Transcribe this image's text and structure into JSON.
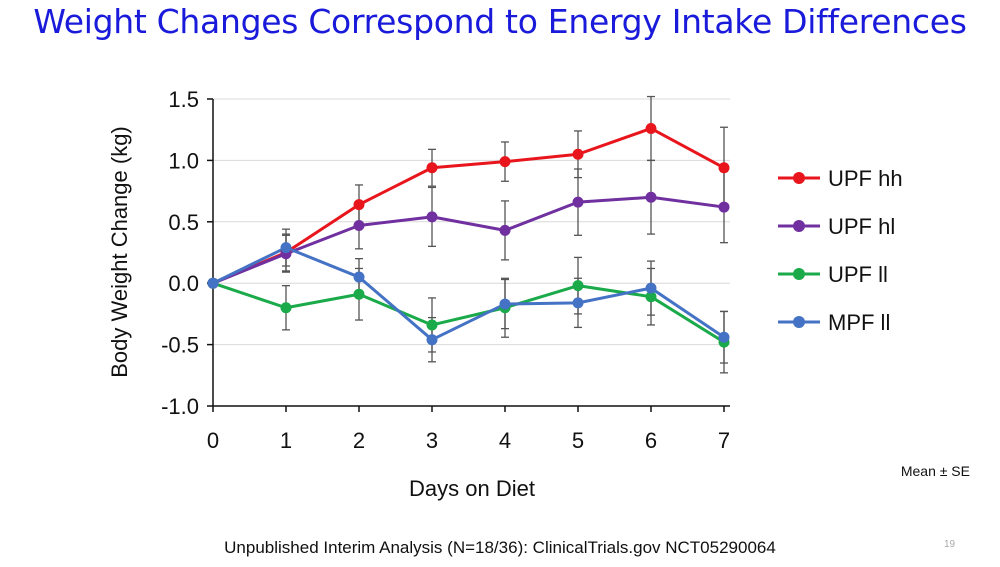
{
  "page": {
    "title": "Weight Changes Correspond to Energy Intake Differences",
    "note": "Mean ± SE",
    "footer": "Unpublished Interim Analysis (N=18/36): ClinicalTrials.gov NCT05290064",
    "page_number": "19"
  },
  "chart_data": {
    "type": "line",
    "title": "Weight Changes Correspond to Energy Intake Differences",
    "xlabel": "Days on Diet",
    "ylabel": "Body Weight Change (kg)",
    "x": [
      0,
      1,
      2,
      3,
      4,
      5,
      6,
      7
    ],
    "xlim": [
      0,
      7
    ],
    "ylim": [
      -1.0,
      1.5
    ],
    "yticks": [
      -1.0,
      -0.5,
      0.0,
      0.5,
      1.0,
      1.5
    ],
    "ytick_labels": [
      "-1.0",
      "-0.5",
      "0.0",
      "0.5",
      "1.0",
      "1.5"
    ],
    "xtick_labels": [
      "0",
      "1",
      "2",
      "3",
      "4",
      "5",
      "6",
      "7"
    ],
    "grid": true,
    "legend": "right",
    "error_bars": "Mean ± SE",
    "series": [
      {
        "name": "UPF hh",
        "color": "#e8161c",
        "values": [
          0,
          0.25,
          0.64,
          0.94,
          0.99,
          1.05,
          1.26,
          0.94
        ],
        "errors": [
          0,
          0.15,
          0.16,
          0.15,
          0.16,
          0.19,
          0.26,
          0.33
        ]
      },
      {
        "name": "UPF hl",
        "color": "#7030a0",
        "values": [
          0,
          0.24,
          0.47,
          0.54,
          0.43,
          0.66,
          0.7,
          0.62
        ],
        "errors": [
          0,
          0.15,
          0.19,
          0.24,
          0.24,
          0.27,
          0.3,
          0.29
        ]
      },
      {
        "name": "UPF ll",
        "color": "#1aaa4a",
        "values": [
          0,
          -0.2,
          -0.09,
          -0.34,
          -0.2,
          -0.02,
          -0.11,
          -0.48
        ],
        "errors": [
          0,
          0.18,
          0.21,
          0.22,
          0.24,
          0.23,
          0.23,
          0.25
        ]
      },
      {
        "name": "MPF ll",
        "color": "#4472c4",
        "values": [
          0,
          0.29,
          0.05,
          -0.46,
          -0.17,
          -0.16,
          -0.04,
          -0.44
        ],
        "errors": [
          0,
          0.15,
          0.15,
          0.18,
          0.2,
          0.2,
          0.22,
          0.21
        ]
      }
    ]
  }
}
